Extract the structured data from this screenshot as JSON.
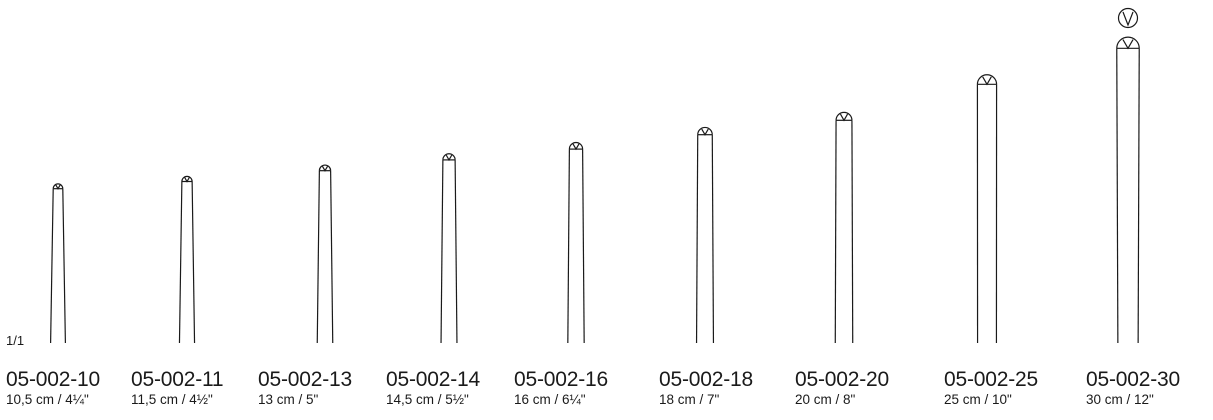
{
  "scale_label": "1/1",
  "instruments": [
    {
      "code": "05-002-10",
      "size": "10,5 cm / 4¼\"",
      "length_cm": 10.5
    },
    {
      "code": "05-002-11",
      "size": "11,5 cm / 4½\"",
      "length_cm": 11.5
    },
    {
      "code": "05-002-13",
      "size": "13 cm / 5\"",
      "length_cm": 13
    },
    {
      "code": "05-002-14",
      "size": "14,5 cm / 5½\"",
      "length_cm": 14.5
    },
    {
      "code": "05-002-16",
      "size": "16 cm / 6¼\"",
      "length_cm": 16
    },
    {
      "code": "05-002-18",
      "size": "18 cm / 7\"",
      "length_cm": 18
    },
    {
      "code": "05-002-20",
      "size": "20 cm / 8\"",
      "length_cm": 20
    },
    {
      "code": "05-002-25",
      "size": "25 cm / 10\"",
      "length_cm": 25
    },
    {
      "code": "05-002-30",
      "size": "30 cm / 12\"",
      "length_cm": 30
    }
  ],
  "tip_detail_icon": "v-tip-detail-icon"
}
